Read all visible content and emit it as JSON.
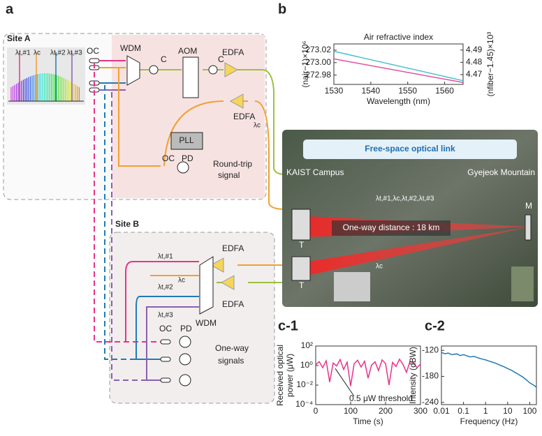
{
  "panels": {
    "a": "a",
    "b": "b",
    "c1": "c-1",
    "c2": "c-2"
  },
  "site_a": {
    "title": "Site A",
    "spectrum_labels": [
      "λt,#1",
      "λc",
      "λt,#2",
      "λt,#3"
    ],
    "oc": "OC",
    "wdm": "WDM",
    "aom": "AOM",
    "circulators": [
      "C",
      "C"
    ],
    "edfa": [
      "EDFA",
      "EDFA"
    ],
    "lambda_c": "λc",
    "pll": "PLL",
    "oc2": "OC",
    "pd": "PD",
    "signal": [
      "Round-trip",
      "signal"
    ]
  },
  "site_b": {
    "title": "Site B",
    "edfa": [
      "EDFA",
      "EDFA"
    ],
    "lambdas": [
      "λt,#1",
      "λc",
      "λt,#2",
      "λt,#3"
    ],
    "wdm": "WDM",
    "oc": "OC",
    "pd": "PD",
    "signal": [
      "One-way",
      "signals"
    ]
  },
  "map": {
    "title": "Free-space optical link",
    "left": "KAIST Campus",
    "right": "Gyejeok Mountain",
    "mirror": "M",
    "telescopes": [
      "T",
      "T"
    ],
    "distance": "One-way distance : 18 km",
    "beam_labels": [
      "λt,#1,λc,λt,#2,λt,#3",
      "λc"
    ]
  },
  "chart_data": [
    {
      "type": "line",
      "title": "Air refractive index",
      "xlabel": "Wavelength (nm)",
      "ylabel": "(nair−1)×10⁶",
      "y2label": "(nfiber−1.45)×10³",
      "x": [
        1530,
        1565
      ],
      "xlim": [
        1530,
        1565
      ],
      "xticks": [
        1530,
        1540,
        1550,
        1560
      ],
      "ylim": [
        272.965,
        273.03
      ],
      "yticks": [
        272.98,
        {
          "value": 273,
          "label": "273.00"
        },
        273.02
      ],
      "y2lim": [
        4.462,
        4.495
      ],
      "y2ticks": [
        4.47,
        4.48,
        4.49
      ],
      "series": [
        {
          "color": "#e0509f",
          "values": [
            273.006,
            272.968
          ]
        },
        {
          "color": "#4cbfd0",
          "axis": "y2",
          "values": [
            4.489,
            4.465
          ]
        }
      ]
    },
    {
      "type": "line",
      "ylabel": [
        "Received optical",
        "power (μW)"
      ],
      "xlabel": "Time (s)",
      "log_y": true,
      "annotation": "0.5 μW threshold",
      "threshold": 0.5,
      "x": [
        0,
        10,
        20,
        30,
        40,
        50,
        60,
        70,
        80,
        90,
        100,
        110,
        120,
        130,
        140,
        150,
        160,
        170,
        180,
        190,
        200,
        210,
        220,
        230,
        240,
        250,
        260,
        270,
        280,
        290,
        300
      ],
      "values": [
        1.2,
        2.5,
        0.6,
        3.1,
        0.02,
        1.8,
        0.9,
        4.2,
        0.4,
        2.2,
        0.008,
        1.5,
        3.5,
        0.7,
        2.8,
        0.05,
        1.1,
        2.4,
        0.3,
        3.8,
        1.6,
        0.01,
        2.1,
        0.8,
        4.5,
        1.3,
        0.2,
        2.7,
        1.9,
        0.6,
        1.4
      ],
      "color": "#e8338a",
      "xlim": [
        0,
        300
      ],
      "xticks": [
        0,
        100,
        200,
        300
      ],
      "ylim": [
        0.0001,
        100
      ],
      "yticks": [
        {
          "value": 0.0001,
          "label": "10⁻⁴"
        },
        {
          "value": 0.01,
          "label": "10⁻²"
        },
        {
          "value": 1,
          "label": "10⁰"
        },
        {
          "value": 100,
          "label": "10²"
        }
      ]
    },
    {
      "type": "line",
      "ylabel": "Intensity (dBW)",
      "xlabel": "Frequency (Hz)",
      "log_x": true,
      "color": "#1f7bb6",
      "x": [
        0.01,
        0.015,
        0.02,
        0.03,
        0.05,
        0.07,
        0.1,
        0.15,
        0.2,
        0.3,
        0.5,
        0.7,
        1,
        1.5,
        2,
        3,
        5,
        7,
        10,
        15,
        20,
        30,
        50,
        70,
        100,
        150,
        200
      ],
      "values": [
        -125,
        -128,
        -126,
        -130,
        -128,
        -132,
        -130,
        -133,
        -135,
        -134,
        -138,
        -140,
        -142,
        -145,
        -147,
        -150,
        -155,
        -158,
        -162,
        -166,
        -170,
        -175,
        -182,
        -188,
        -195,
        -200,
        -205
      ],
      "xlim": [
        0.01,
        200
      ],
      "xticks": [
        0.01,
        0.1,
        1,
        10,
        100
      ],
      "ylim": [
        -245,
        -110
      ],
      "yticks": [
        -120,
        -180,
        -240
      ]
    }
  ]
}
